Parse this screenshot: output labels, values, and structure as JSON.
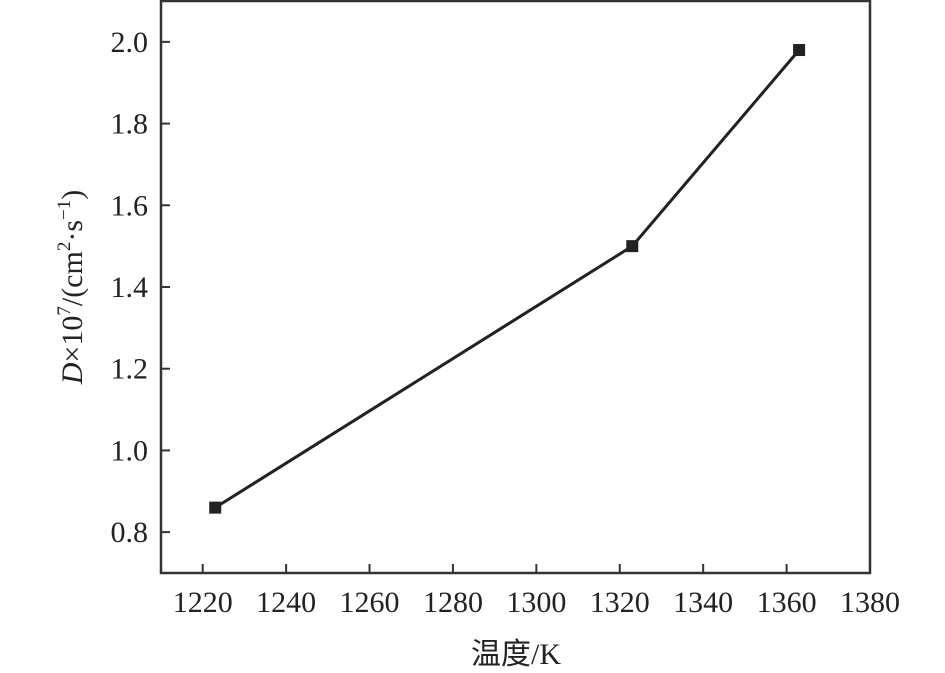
{
  "chart_data": {
    "type": "line",
    "title": "",
    "xlabel": "温度/K",
    "ylabel": {
      "symbol": "D",
      "rest": "×10",
      "exp": "7",
      "unit_open": "/(cm",
      "unit_exp1": "2",
      "unit_mid": "·s",
      "unit_exp2": "−1",
      "unit_close": ")"
    },
    "xlim": [
      1210,
      1380
    ],
    "ylim": [
      0.7,
      2.1
    ],
    "xticks": [
      1220,
      1240,
      1260,
      1280,
      1300,
      1320,
      1340,
      1360,
      1380
    ],
    "yticks": [
      0.8,
      1.0,
      1.2,
      1.4,
      1.6,
      1.8,
      2.0
    ],
    "xtick_labels": [
      "1220",
      "1240",
      "1260",
      "1280",
      "1300",
      "1320",
      "1340",
      "1360",
      "1380"
    ],
    "ytick_labels": [
      "0.8",
      "1.0",
      "1.2",
      "1.4",
      "1.6",
      "1.8",
      "2.0"
    ],
    "grid": false,
    "marker": "square",
    "color": "#222222",
    "series": [
      {
        "x": [
          1223,
          1323,
          1363
        ],
        "y": [
          0.86,
          1.5,
          1.98
        ]
      }
    ]
  }
}
